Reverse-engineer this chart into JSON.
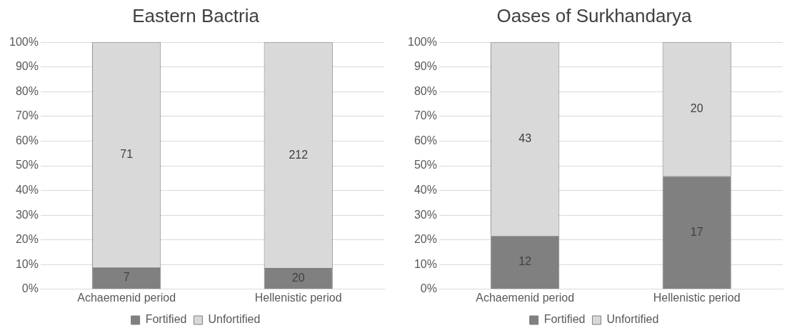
{
  "chart_data": [
    {
      "type": "bar",
      "title": "Eastern Bactria",
      "categories": [
        "Achaemenid period",
        "Hellenistic period"
      ],
      "stacked": true,
      "series": [
        {
          "name": "Fortified",
          "color": "#808080",
          "values": [
            9.0,
            8.6
          ]
        },
        {
          "name": "Unfortified",
          "color": "#d9d9d9",
          "values": [
            91.0,
            91.4
          ]
        }
      ],
      "annotations": [
        "7",
        "20",
        "71",
        "212"
      ],
      "ylim": [
        0,
        100
      ],
      "yticks": [
        {
          "value": 0,
          "label": "0%"
        },
        {
          "value": 10,
          "label": "10%"
        },
        {
          "value": 20,
          "label": "20%"
        },
        {
          "value": 30,
          "label": "30%"
        },
        {
          "value": 40,
          "label": "40%"
        },
        {
          "value": 50,
          "label": "50%"
        },
        {
          "value": 60,
          "label": "60%"
        },
        {
          "value": 70,
          "label": "70%"
        },
        {
          "value": 80,
          "label": "80%"
        },
        {
          "value": 90,
          "label": "90%"
        },
        {
          "value": 100,
          "label": "100%"
        }
      ],
      "grid": "y",
      "legend": "bottom"
    },
    {
      "type": "bar",
      "title": "Oases of Surkhandarya",
      "categories": [
        "Achaemenid period",
        "Hellenistic period"
      ],
      "stacked": true,
      "series": [
        {
          "name": "Fortified",
          "color": "#808080",
          "values": [
            21.8,
            45.9
          ]
        },
        {
          "name": "Unfortified",
          "color": "#d9d9d9",
          "values": [
            78.2,
            54.1
          ]
        }
      ],
      "annotations": [
        "12",
        "17",
        "43",
        "20"
      ],
      "ylim": [
        0,
        100
      ],
      "yticks": [
        {
          "value": 0,
          "label": "0%"
        },
        {
          "value": 10,
          "label": "10%"
        },
        {
          "value": 20,
          "label": "20%"
        },
        {
          "value": 30,
          "label": "30%"
        },
        {
          "value": 40,
          "label": "40%"
        },
        {
          "value": 50,
          "label": "50%"
        },
        {
          "value": 60,
          "label": "60%"
        },
        {
          "value": 70,
          "label": "70%"
        },
        {
          "value": 80,
          "label": "80%"
        },
        {
          "value": 90,
          "label": "90%"
        },
        {
          "value": 100,
          "label": "100%"
        }
      ],
      "grid": "y",
      "legend": "bottom"
    }
  ]
}
